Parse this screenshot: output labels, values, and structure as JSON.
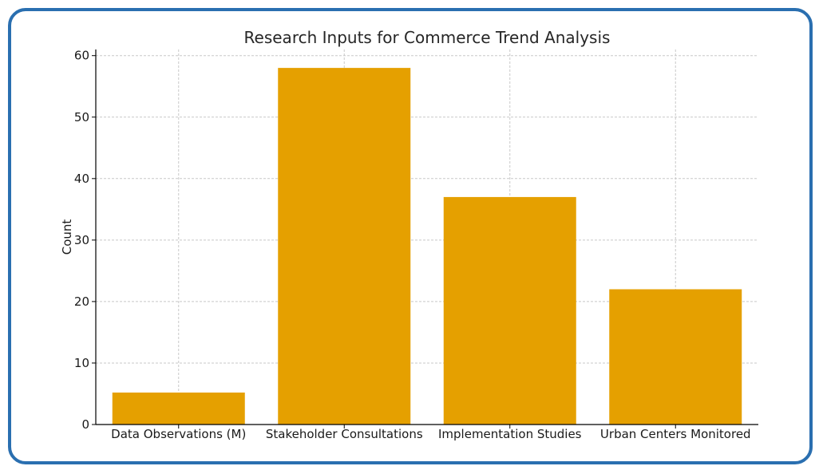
{
  "chart_data": {
    "type": "bar",
    "title": "Research Inputs for Commerce Trend Analysis",
    "xlabel": "",
    "ylabel": "Count",
    "categories": [
      "Data Observations (M)",
      "Stakeholder Consultations",
      "Implementation Studies",
      "Urban Centers Monitored"
    ],
    "values": [
      5.2,
      58,
      37,
      22
    ],
    "ylim": [
      0,
      61
    ],
    "yticks": [
      0,
      10,
      20,
      30,
      40,
      50,
      60
    ],
    "grid": true,
    "bar_color": "#e5a000",
    "frame_color": "#2a6fb0"
  }
}
